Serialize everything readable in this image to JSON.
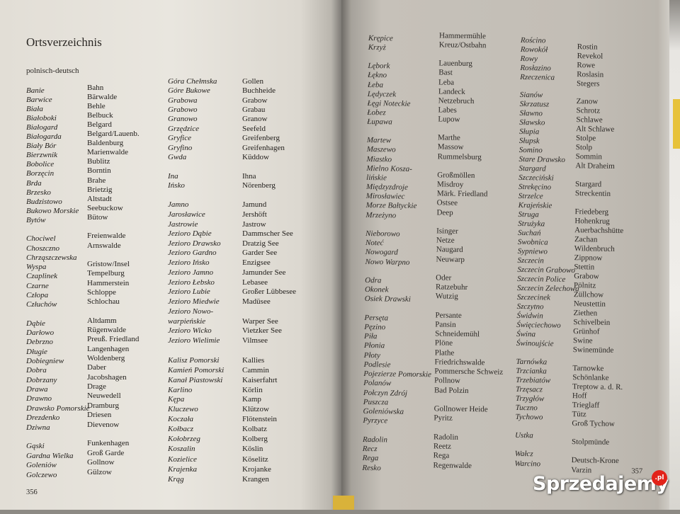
{
  "left_page": {
    "title": "Ortsverzeichnis",
    "subtitle": "polnisch-deutsch",
    "page_number": "356",
    "column_a": [
      [
        "Banie",
        "Bahn"
      ],
      [
        "Barwice",
        "Bärwalde"
      ],
      [
        "Biała",
        "Behle"
      ],
      [
        "Białoboki",
        "Belbuck"
      ],
      [
        "Białogard",
        "Belgard"
      ],
      [
        "Białogarda",
        "Belgard/Lauenb."
      ],
      [
        "Biały Bór",
        "Baldenburg"
      ],
      [
        "Bierzwnik",
        "Marienwalde"
      ],
      [
        "Bobolice",
        "Bublitz"
      ],
      [
        "Borzęcin",
        "Borntin"
      ],
      [
        "Brda",
        "Brahe"
      ],
      [
        "Brzesko",
        "Brietzig"
      ],
      [
        "Budzistowo",
        "Altstadt"
      ],
      [
        "Bukowo Morskie",
        "Seebuckow"
      ],
      [
        "Bytów",
        "Bütow"
      ],
      [
        "",
        ""
      ],
      [
        "Chociwel",
        "Freienwalde"
      ],
      [
        "Choszczno",
        "Arnswalde"
      ],
      [
        "Chrząszczewska",
        ""
      ],
      [
        "Wyspa",
        "Gristow/Insel"
      ],
      [
        "Czaplinek",
        "Tempelburg"
      ],
      [
        "Czarne",
        "Hammerstein"
      ],
      [
        "Człopa",
        "Schloppe"
      ],
      [
        "Człuchów",
        "Schlochau"
      ],
      [
        "",
        ""
      ],
      [
        "Dąbie",
        "Altdamm"
      ],
      [
        "Darłowo",
        "Rügenwalde"
      ],
      [
        "Debrzno",
        "Preuß. Friedland"
      ],
      [
        "Długie",
        "Langenhagen"
      ],
      [
        "Dobiegniew",
        "Woldenberg"
      ],
      [
        "Dobra",
        "Daber"
      ],
      [
        "Dobrzany",
        "Jacobshagen"
      ],
      [
        "Drawa",
        "Drage"
      ],
      [
        "Drawno",
        "Neuwedell"
      ],
      [
        "Drawsko Pomorskie",
        "Dramburg"
      ],
      [
        "Drezdenko",
        "Driesen"
      ],
      [
        "Dziwna",
        "Dievenow"
      ],
      [
        "",
        ""
      ],
      [
        "Gąski",
        "Funkenhagen"
      ],
      [
        "Gardna Wielka",
        "Groß Garde"
      ],
      [
        "Goleniów",
        "Gollnow"
      ],
      [
        "Golczewo",
        "Gülzow"
      ]
    ],
    "column_b": [
      [
        "Góra Chełmska",
        "Gollen"
      ],
      [
        "Góre Bukowe",
        "Buchheide"
      ],
      [
        "Grabowa",
        "Grabow"
      ],
      [
        "Grabowo",
        "Grabau"
      ],
      [
        "Granowo",
        "Granow"
      ],
      [
        "Grzędzice",
        "Seefeld"
      ],
      [
        "Gryfice",
        "Greifenberg"
      ],
      [
        "Gryfino",
        "Greifenhagen"
      ],
      [
        "Gwda",
        "Küddow"
      ],
      [
        "",
        ""
      ],
      [
        "Ina",
        "Ihna"
      ],
      [
        "Ińsko",
        "Nörenberg"
      ],
      [
        "",
        ""
      ],
      [
        "Jamno",
        "Jamund"
      ],
      [
        "Jarosławice",
        "Jershöft"
      ],
      [
        "Jastrowie",
        "Jastrow"
      ],
      [
        "Jezioro Dąbie",
        "Dammscher See"
      ],
      [
        "Jezioro Drawsko",
        "Dratzig See"
      ],
      [
        "Jezioro Gardno",
        "Garder See"
      ],
      [
        "Jezioro Ińsko",
        "Enzigsee"
      ],
      [
        "Jezioro Jamno",
        "Jamunder See"
      ],
      [
        "Jezioro Łebsko",
        "Lebasee"
      ],
      [
        "Jezioro Lubie",
        "Großer Lübbesee"
      ],
      [
        "Jezioro Miedwie",
        "Madüsee"
      ],
      [
        "Jezioro Nowo-",
        ""
      ],
      [
        "warpieńskie",
        "Warper See"
      ],
      [
        "Jezioro Wicko",
        "Vietzker See"
      ],
      [
        "Jezioro Wielimie",
        "Vilmsee"
      ],
      [
        "",
        ""
      ],
      [
        "Kalisz Pomorski",
        "Kallies"
      ],
      [
        "Kamień Pomorski",
        "Cammin"
      ],
      [
        "Kanał Piastowski",
        "Kaiserfahrt"
      ],
      [
        "Karlino",
        "Körlin"
      ],
      [
        "Kępa",
        "Kamp"
      ],
      [
        "Kluczewo",
        "Klützow"
      ],
      [
        "Koczała",
        "Flötenstein"
      ],
      [
        "Kołbacz",
        "Kolbatz"
      ],
      [
        "Kołobrzeg",
        "Kolberg"
      ],
      [
        "Koszalin",
        "Köslin"
      ],
      [
        "Kozielice",
        "Köselitz"
      ],
      [
        "Krajenka",
        "Krojanke"
      ],
      [
        "Krąg",
        "Krangen"
      ]
    ]
  },
  "right_page": {
    "page_number": "357",
    "column_a": [
      [
        "Krępice",
        "Hammermühle"
      ],
      [
        "Krzyż",
        "Kreuz/Ostbahn"
      ],
      [
        "",
        ""
      ],
      [
        "Lębork",
        "Lauenburg"
      ],
      [
        "Łękno",
        "Bast"
      ],
      [
        "Łeba",
        "Leba"
      ],
      [
        "Lędyczek",
        "Landeck"
      ],
      [
        "Łęgi Noteckie",
        "Netzebruch"
      ],
      [
        "Łobez",
        "Labes"
      ],
      [
        "Łupawa",
        "Lupow"
      ],
      [
        "",
        ""
      ],
      [
        "Martew",
        "Marthe"
      ],
      [
        "Maszewo",
        "Massow"
      ],
      [
        "Miastko",
        "Rummelsburg"
      ],
      [
        "Mielno Kosza-",
        ""
      ],
      [
        "lińskie",
        "Großmöllen"
      ],
      [
        "Międzyzdroje",
        "Misdroy"
      ],
      [
        "Mirosławiec",
        "Märk. Friedland"
      ],
      [
        "Morze Bałtyckie",
        "Ostsee"
      ],
      [
        "Mrzeżyno",
        "Deep"
      ],
      [
        "",
        ""
      ],
      [
        "Nieborowo",
        "Isinger"
      ],
      [
        "Noteć",
        "Netze"
      ],
      [
        "Nowogard",
        "Naugard"
      ],
      [
        "Nowo Warpno",
        "Neuwarp"
      ],
      [
        "",
        ""
      ],
      [
        "Odra",
        "Oder"
      ],
      [
        "Okonek",
        "Ratzebuhr"
      ],
      [
        "Osiek Drawski",
        "Wutzig"
      ],
      [
        "",
        ""
      ],
      [
        "Persęta",
        "Persante"
      ],
      [
        "Pęzino",
        "Pansin"
      ],
      [
        "Piła",
        "Schneidemühl"
      ],
      [
        "Płonia",
        "Plöne"
      ],
      [
        "Płoty",
        "Plathe"
      ],
      [
        "Podlesie",
        "Friedrichswalde"
      ],
      [
        "Pojezierze Pomorskie",
        "Pommersche Schweiz"
      ],
      [
        "Polanów",
        "Pollnow"
      ],
      [
        "Połczyn Zdrój",
        "Bad Polzin"
      ],
      [
        "Puszcza",
        ""
      ],
      [
        "Goleniówska",
        "Gollnower Heide"
      ],
      [
        "Pyrzyce",
        "Pyritz"
      ],
      [
        "",
        ""
      ],
      [
        "Radolin",
        "Radolin"
      ],
      [
        "Recz",
        "Reetz"
      ],
      [
        "Rega",
        "Rega"
      ],
      [
        "Resko",
        "Regenwalde"
      ]
    ],
    "column_b": [
      [
        "Rościno",
        "Rostin"
      ],
      [
        "Rowokół",
        "Revekol"
      ],
      [
        "Rowy",
        "Rowe"
      ],
      [
        "Rosłazino",
        "Roslasin"
      ],
      [
        "Rzeczenica",
        "Stegers"
      ],
      [
        "",
        ""
      ],
      [
        "Sianów",
        "Zanow"
      ],
      [
        "Skrzatusz",
        "Schrotz"
      ],
      [
        "Sławno",
        "Schlawe"
      ],
      [
        "Sławsko",
        "Alt Schlawe"
      ],
      [
        "Słupia",
        "Stolpe"
      ],
      [
        "Słupsk",
        "Stolp"
      ],
      [
        "Somino",
        "Sommin"
      ],
      [
        "Stare Drawsko",
        "Alt Draheim"
      ],
      [
        "Stargard",
        ""
      ],
      [
        "Szczeciński",
        "Stargard"
      ],
      [
        "Strekęcino",
        "Streckentin"
      ],
      [
        "Strzelce",
        ""
      ],
      [
        "Krajeńskie",
        "Friedeberg"
      ],
      [
        "Struga",
        "Hohenkrug"
      ],
      [
        "Strużyka",
        "Auerbachshütte"
      ],
      [
        "Suchań",
        "Zachan"
      ],
      [
        "Swobnica",
        "Wildenbruch"
      ],
      [
        "Sypniewo",
        "Zippnow"
      ],
      [
        "Szczecin",
        "Stettin"
      ],
      [
        "Szczecin Grabowo",
        "Grabow"
      ],
      [
        "Szczecin Police",
        "Pölnitz"
      ],
      [
        "Szczecin Zelechowa",
        "Züllchow"
      ],
      [
        "Szczecinek",
        "Neustettin"
      ],
      [
        "Szczytno",
        "Ziethen"
      ],
      [
        "Świdwin",
        "Schivelbein"
      ],
      [
        "Święciechowo",
        "Grünhof"
      ],
      [
        "Świna",
        "Swine"
      ],
      [
        "Świnoujście",
        "Swinemünde"
      ],
      [
        "",
        ""
      ],
      [
        "Tarnówka",
        "Tarnowke"
      ],
      [
        "Trzcianka",
        "Schönlanke"
      ],
      [
        "Trzebiatów",
        "Treptow a. d. R."
      ],
      [
        "Trzęsacz",
        "Hoff"
      ],
      [
        "Trzygłów",
        "Trieglaff"
      ],
      [
        "Tuczno",
        "Tütz"
      ],
      [
        "Tychowo",
        "Groß Tychow"
      ],
      [
        "",
        ""
      ],
      [
        "Ustka",
        "Stolpmünde"
      ],
      [
        "",
        ""
      ],
      [
        "Wałcz",
        "Deutsch-Krone"
      ],
      [
        "Warcino",
        "Varzin"
      ]
    ]
  },
  "watermark": {
    "text": "Sprzedajemy",
    "suffix": ".pl",
    "dot_color": "#e2231a"
  }
}
